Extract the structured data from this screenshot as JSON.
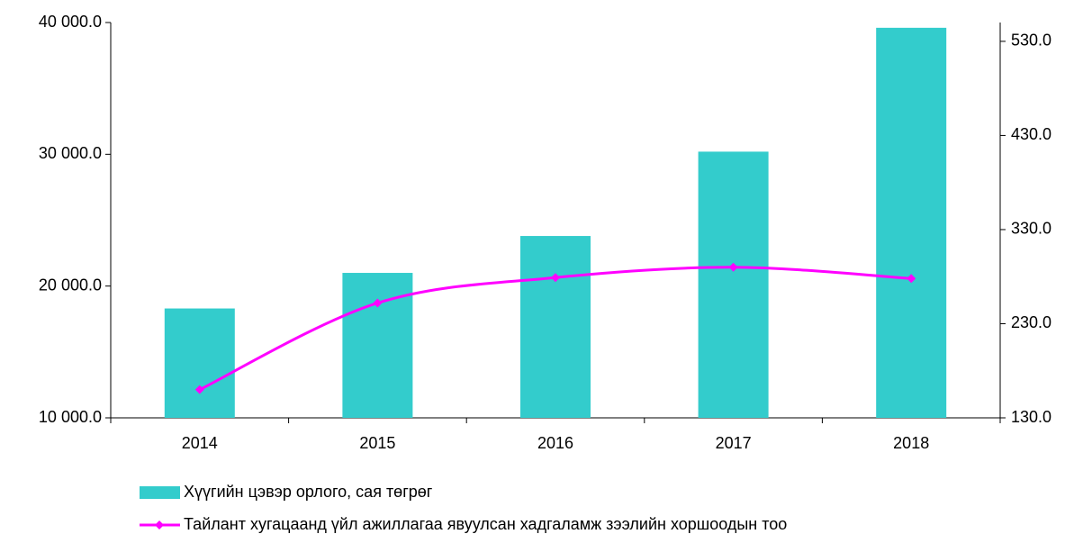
{
  "chart_data": {
    "type": "bar_line",
    "categories": [
      "2014",
      "2015",
      "2016",
      "2017",
      "2018"
    ],
    "series": [
      {
        "name": "Хүүгийн цэвэр орлого, сая төгрөг",
        "type": "bar",
        "color": "#33cccc",
        "values": [
          18300,
          21000,
          23800,
          30200,
          39600
        ]
      },
      {
        "name": "Тайлант  хугацаанд үйл ажиллагаа явуулсан хадгаламж зээлийн хоршоодын тоо",
        "type": "line",
        "axis": "y2",
        "color": "#ff00ff",
        "values": [
          160,
          252,
          279,
          290,
          278
        ]
      }
    ],
    "ylim": [
      10000,
      40000
    ],
    "yticks": [
      {
        "value": 10000,
        "label": "10 000.0"
      },
      {
        "value": 20000,
        "label": "20 000.0"
      },
      {
        "value": 30000,
        "label": "30 000.0"
      },
      {
        "value": 40000,
        "label": "40 000.0"
      }
    ],
    "y2lim": [
      130,
      550
    ],
    "y2ticks": [
      {
        "value": 130,
        "label": "130.0"
      },
      {
        "value": 230,
        "label": "230.0"
      },
      {
        "value": 330,
        "label": "330.0"
      },
      {
        "value": 430,
        "label": "430.0"
      },
      {
        "value": 530,
        "label": "530.0"
      }
    ],
    "grid": false,
    "legend": "bottom"
  }
}
